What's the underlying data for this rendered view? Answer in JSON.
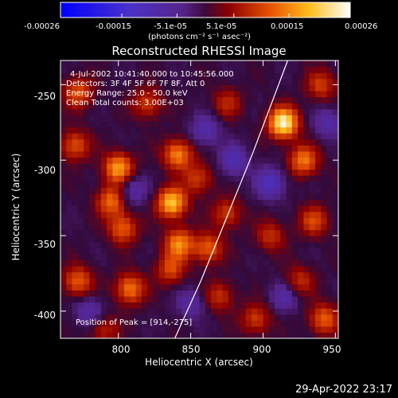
{
  "colorbar": {
    "ticks": [
      "-0.00026",
      "-0.00015",
      "-5.1e-05",
      "5.1e-05",
      "0.00015",
      "0.00026"
    ],
    "units": "(photons cm⁻² s⁻¹ asec⁻²)",
    "range": [
      -0.00026,
      0.00026
    ]
  },
  "annotations": {
    "time": "4-Jul-2002 10:41:40.000 to 10:45:56.000",
    "detectors": "Detectors: 3F 4F 5F 6F 7F 8F, Att 0",
    "energy": "Energy Range: 25.0 - 50.0 keV",
    "clean": "Clean     Total counts: 3.00E+03",
    "peak": "Position of Peak = [914,-275]"
  },
  "timestamp": "29-Apr-2022 23:17",
  "chart_data": {
    "type": "heatmap",
    "title": "Reconstructed RHESSI Image",
    "xlabel": "Heliocentric X (arcsec)",
    "ylabel": "Heliocentric Y (arcsec)",
    "xlim": [
      760,
      952
    ],
    "ylim": [
      -418,
      -234
    ],
    "xticks": [
      800,
      850,
      900,
      950
    ],
    "yticks": [
      -250,
      -300,
      -350,
      -400
    ],
    "limb_line": [
      [
        839,
        -418
      ],
      [
        857,
        -380
      ],
      [
        874,
        -340
      ],
      [
        893,
        -295
      ],
      [
        908,
        -257
      ],
      [
        917,
        -234
      ]
    ],
    "sources": [
      {
        "x": 914,
        "y": -275,
        "v": 0.00026
      },
      {
        "x": 928,
        "y": -300,
        "v": 0.00015
      },
      {
        "x": 800,
        "y": -305,
        "v": 0.00018
      },
      {
        "x": 841,
        "y": -296,
        "v": 0.00016
      },
      {
        "x": 795,
        "y": -327,
        "v": 0.00014
      },
      {
        "x": 803,
        "y": -345,
        "v": 0.00013
      },
      {
        "x": 837,
        "y": -328,
        "v": 0.00021
      },
      {
        "x": 855,
        "y": -312,
        "v": 0.0001
      },
      {
        "x": 772,
        "y": -255,
        "v": 0.00012
      },
      {
        "x": 820,
        "y": -262,
        "v": 0.0001
      },
      {
        "x": 770,
        "y": -290,
        "v": 0.00012
      },
      {
        "x": 772,
        "y": -380,
        "v": 0.00013
      },
      {
        "x": 808,
        "y": -385,
        "v": 0.00015
      },
      {
        "x": 836,
        "y": -372,
        "v": 0.00011
      },
      {
        "x": 842,
        "y": -355,
        "v": 0.00016
      },
      {
        "x": 862,
        "y": -358,
        "v": 0.00013
      },
      {
        "x": 875,
        "y": -335,
        "v": 0.0001
      },
      {
        "x": 905,
        "y": -350,
        "v": 9e-05
      },
      {
        "x": 935,
        "y": -340,
        "v": 0.00011
      },
      {
        "x": 925,
        "y": -380,
        "v": 9e-05
      },
      {
        "x": 942,
        "y": -405,
        "v": 0.00013
      },
      {
        "x": 895,
        "y": -405,
        "v": 0.0001
      },
      {
        "x": 870,
        "y": -390,
        "v": 9e-05
      },
      {
        "x": 940,
        "y": -250,
        "v": 0.0001
      },
      {
        "x": 875,
        "y": -262,
        "v": 8e-05
      },
      {
        "x": 790,
        "y": -412,
        "v": 8e-05
      },
      {
        "x": 905,
        "y": -315,
        "v": -0.00012
      },
      {
        "x": 880,
        "y": -300,
        "v": -0.0001
      },
      {
        "x": 860,
        "y": -280,
        "v": -9e-05
      },
      {
        "x": 810,
        "y": -320,
        "v": -8e-05
      },
      {
        "x": 780,
        "y": -400,
        "v": -8e-05
      },
      {
        "x": 915,
        "y": -390,
        "v": -8e-05
      },
      {
        "x": 850,
        "y": -395,
        "v": -7e-05
      },
      {
        "x": 945,
        "y": -275,
        "v": -8e-05
      }
    ]
  }
}
